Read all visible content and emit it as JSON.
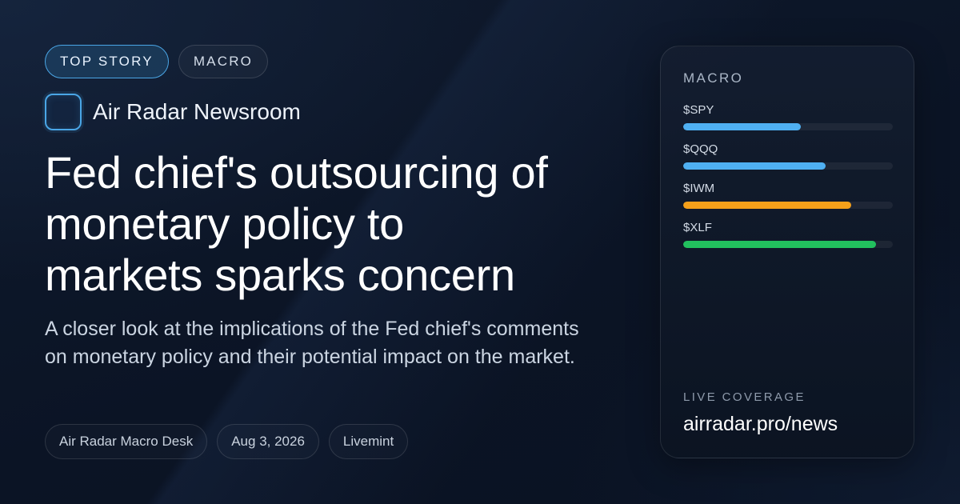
{
  "tags": [
    {
      "label": "TOP STORY"
    },
    {
      "label": "MACRO"
    }
  ],
  "brand": {
    "name": "Air Radar Newsroom"
  },
  "headline": {
    "lines": [
      "Fed chief's outsourcing of",
      "monetary policy to",
      "markets sparks concern"
    ]
  },
  "dek": "A closer look at the implications of the Fed chief's comments on monetary policy and their potential impact on the market.",
  "meta": [
    {
      "label": "Air Radar Macro Desk"
    },
    {
      "label": "Aug 3, 2026"
    },
    {
      "label": "Livemint"
    }
  ],
  "card": {
    "title": "MACRO",
    "tickers": [
      {
        "symbol": "$SPY",
        "level": 0.56,
        "color": "#4fb0f2"
      },
      {
        "symbol": "$QQQ",
        "level": 0.68,
        "color": "#4fb0f2"
      },
      {
        "symbol": "$IWM",
        "level": 0.8,
        "color": "#f5a01a"
      },
      {
        "symbol": "$XLF",
        "level": 0.92,
        "color": "#22c05e"
      }
    ],
    "live_label": "LIVE COVERAGE",
    "live_url": "airradar.pro/news"
  }
}
